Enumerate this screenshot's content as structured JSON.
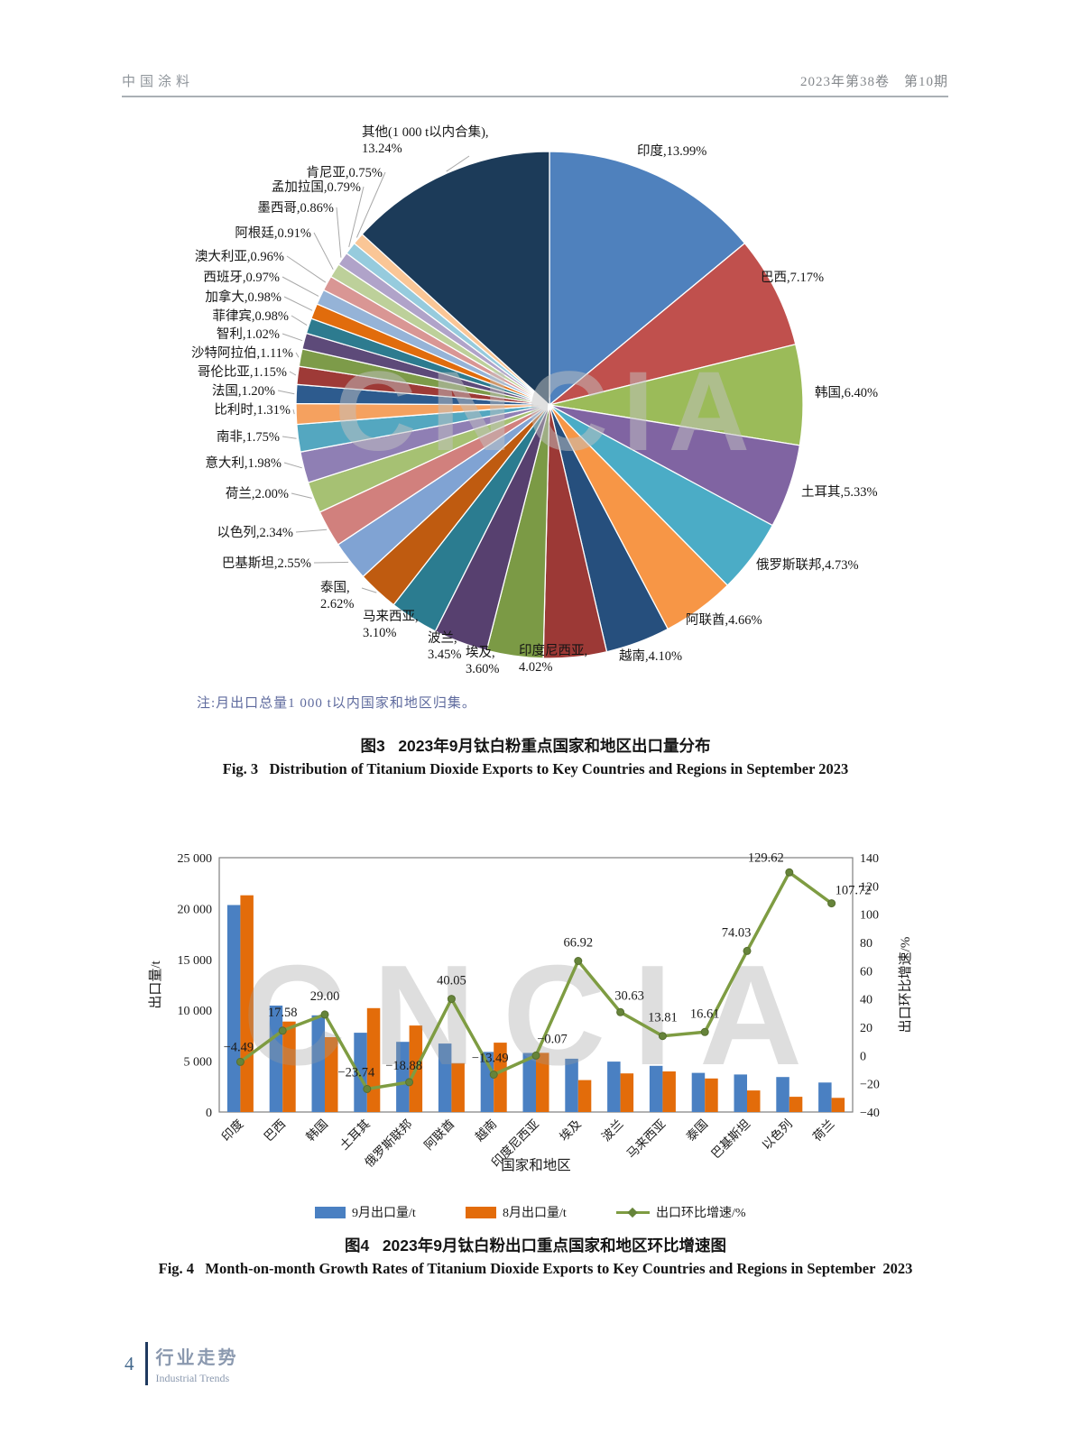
{
  "page": {
    "header": {
      "left": "中国涂料",
      "right": "2023年第38卷　第10期"
    },
    "footer": {
      "page_number": "4",
      "section_cn": "行业走势",
      "section_en": "Industrial Trends"
    }
  },
  "watermark": "CNCIA",
  "chart_data": [
    {
      "id": "fig3",
      "type": "pie",
      "title_cn": "图3   2023年9月钛白粉重点国家和地区出口量分布",
      "title_en": "Fig. 3   Distribution of Titanium Dioxide Exports to Key Countries and Regions in September 2023",
      "note": "注:月出口总量1 000 t以内国家和地区归集。",
      "unit": "%",
      "slices": [
        {
          "label": "印度",
          "value": 13.99,
          "color": "#4f81bd"
        },
        {
          "label": "巴西",
          "value": 7.17,
          "color": "#c0504d"
        },
        {
          "label": "韩国",
          "value": 6.4,
          "color": "#9bbb59"
        },
        {
          "label": "土耳其",
          "value": 5.33,
          "color": "#8064a2"
        },
        {
          "label": "俄罗斯联邦",
          "value": 4.73,
          "color": "#4bacc6"
        },
        {
          "label": "阿联酋",
          "value": 4.66,
          "color": "#f79646"
        },
        {
          "label": "越南",
          "value": 4.1,
          "color": "#264f7d"
        },
        {
          "label": "印度尼西亚",
          "value": 4.02,
          "color": "#9c3936"
        },
        {
          "label": "埃及",
          "value": 3.6,
          "color": "#7b9a45"
        },
        {
          "label": "波兰",
          "value": 3.45,
          "color": "#57406f"
        },
        {
          "label": "马来西亚",
          "value": 3.1,
          "color": "#2b7c90"
        },
        {
          "label": "泰国",
          "value": 2.62,
          "color": "#bf5b10"
        },
        {
          "label": "巴基斯坦",
          "value": 2.55,
          "color": "#80a3d3"
        },
        {
          "label": "以色列",
          "value": 2.34,
          "color": "#d1807d"
        },
        {
          "label": "荷兰",
          "value": 2.0,
          "color": "#a6c173"
        },
        {
          "label": "意大利",
          "value": 1.98,
          "color": "#8f7fb4"
        },
        {
          "label": "南非",
          "value": 1.75,
          "color": "#54a7c0"
        },
        {
          "label": "比利时",
          "value": 1.31,
          "color": "#f5a15f"
        },
        {
          "label": "法国",
          "value": 1.2,
          "color": "#2d5b8e"
        },
        {
          "label": "哥伦比亚",
          "value": 1.15,
          "color": "#9e3a37"
        },
        {
          "label": "沙特阿拉伯",
          "value": 1.11,
          "color": "#7d9b49"
        },
        {
          "label": "智利",
          "value": 1.02,
          "color": "#5d4a79"
        },
        {
          "label": "菲律宾",
          "value": 0.98,
          "color": "#2d7b8f"
        },
        {
          "label": "加拿大",
          "value": 0.98,
          "color": "#e16c0c"
        },
        {
          "label": "西班牙",
          "value": 0.97,
          "color": "#95b3d7"
        },
        {
          "label": "澳大利亚",
          "value": 0.96,
          "color": "#d99694"
        },
        {
          "label": "阿根廷",
          "value": 0.91,
          "color": "#bdd09a"
        },
        {
          "label": "墨西哥",
          "value": 0.86,
          "color": "#b0a3c9"
        },
        {
          "label": "孟加拉国",
          "value": 0.79,
          "color": "#96cbdd"
        },
        {
          "label": "肯尼亚",
          "value": 0.75,
          "color": "#fac696"
        },
        {
          "label": "其他(1 000 t以内合集)",
          "value": 13.24,
          "color": "#1c3b59"
        }
      ]
    },
    {
      "id": "fig4",
      "type": "bar+line",
      "title_cn": "图4   2023年9月钛白粉出口重点国家和地区环比增速图",
      "title_en": "Fig. 4   Month-on-month Growth Rates of Titanium Dioxide Exports to Key Countries and Regions in September  2023",
      "categories": [
        "印度",
        "巴西",
        "韩国",
        "土耳其",
        "俄罗斯联邦",
        "阿联酋",
        "越南",
        "印度尼西亚",
        "埃及",
        "波兰",
        "马来西亚",
        "泰国",
        "巴基斯坦",
        "以色列",
        "荷兰"
      ],
      "series": [
        {
          "name": "9月出口量/t",
          "type": "bar",
          "color": "#4a80c2",
          "values": [
            20350,
            10460,
            9500,
            7790,
            6900,
            6730,
            5900,
            5810,
            5240,
            4960,
            4540,
            3850,
            3690,
            3440,
            2900
          ]
        },
        {
          "name": "8月出口量/t",
          "type": "bar",
          "color": "#e36c0a",
          "values": [
            21307,
            8896,
            7360,
            10214,
            8506,
            4805,
            6820,
            5814,
            3139,
            3797,
            3989,
            3302,
            2120,
            1498,
            1396
          ]
        },
        {
          "name": "出口环比增速/%",
          "type": "line",
          "color": "#7e9c42",
          "values": [
            -4.49,
            17.58,
            29.0,
            -23.74,
            -18.88,
            40.05,
            -13.49,
            -0.07,
            66.92,
            30.63,
            13.81,
            16.61,
            74.03,
            129.62,
            107.72
          ]
        }
      ],
      "xlabel": "国家和地区",
      "ylabel_left": "出口量/t",
      "ylabel_right": "出口环比增速/%",
      "ylim_left": [
        0,
        25000
      ],
      "ylim_right": [
        -40,
        140
      ],
      "yticks_left": [
        [
          0,
          "0"
        ],
        [
          5000,
          "5 000"
        ],
        [
          10000,
          "10 000"
        ],
        [
          15000,
          "15 000"
        ],
        [
          20000,
          "20 000"
        ],
        [
          25000,
          "25 000"
        ]
      ],
      "yticks_right": [
        [
          -40,
          "−40"
        ],
        [
          -20,
          "−20"
        ],
        [
          0,
          "0"
        ],
        [
          20,
          "20"
        ],
        [
          40,
          "40"
        ],
        [
          60,
          "60"
        ],
        [
          80,
          "80"
        ],
        [
          100,
          "100"
        ],
        [
          120,
          "120"
        ],
        [
          140,
          "140"
        ]
      ],
      "legend_position": "bottom",
      "grid": false
    }
  ]
}
